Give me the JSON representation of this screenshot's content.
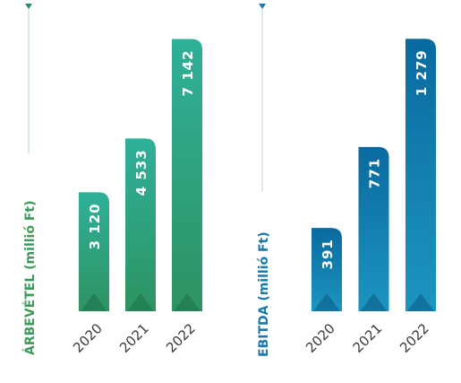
{
  "chart_data": [
    {
      "type": "bar",
      "title": "",
      "ylabel": "ÁRBEVÉTEL (millió Ft)",
      "xlabel": "",
      "categories": [
        "2020",
        "2021",
        "2022"
      ],
      "values": [
        3120,
        4533,
        7142
      ],
      "value_labels": [
        "3 120",
        "4 533",
        "7 142"
      ],
      "ylim": [
        0,
        7600
      ],
      "grid": false,
      "colors": [
        "#2f9a6a",
        "#2fa07a",
        "#2eaa95"
      ],
      "axis_title_color": "#3d9a5c"
    },
    {
      "type": "bar",
      "title": "",
      "ylabel": "EBITDA (millió Ft)",
      "xlabel": "",
      "categories": [
        "2020",
        "2021",
        "2022"
      ],
      "values": [
        391,
        771,
        1279
      ],
      "value_labels": [
        "391",
        "771",
        "1 279"
      ],
      "ylim": [
        0,
        1360
      ],
      "grid": false,
      "colors": [
        "#1a8cb8",
        "#137fb0",
        "#0b6fa3"
      ],
      "axis_title_color": "#1b78a8"
    }
  ]
}
